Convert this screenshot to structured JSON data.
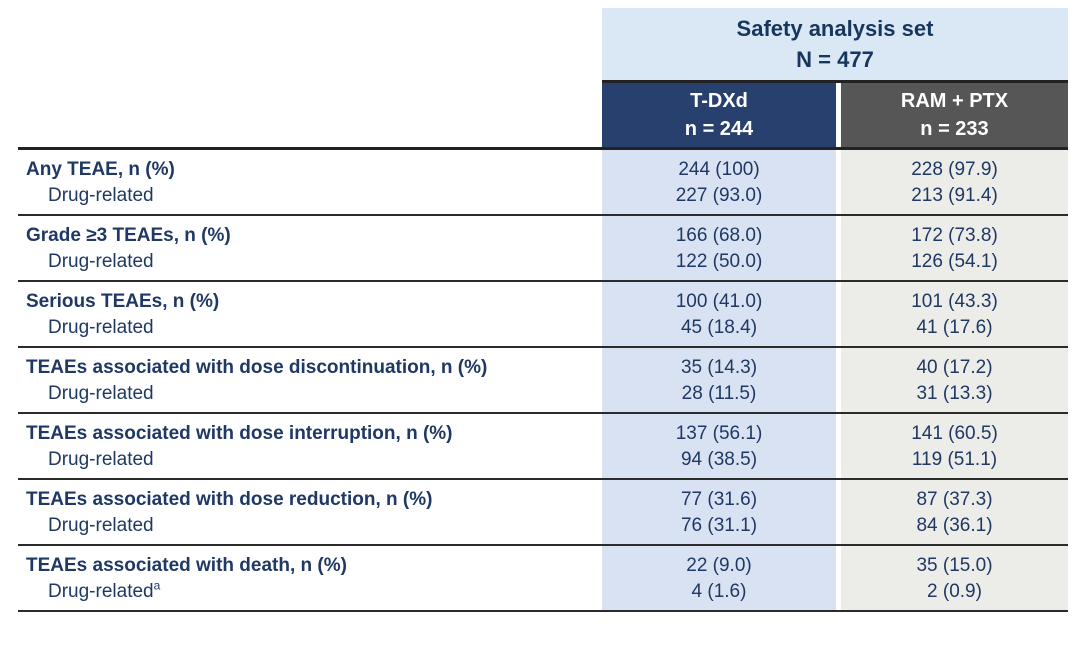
{
  "table": {
    "banner": {
      "title": "Safety analysis set",
      "n": "N = 477"
    },
    "columns": [
      {
        "name": "T-DXd",
        "n": "n = 244"
      },
      {
        "name": "RAM + PTX",
        "n": "n = 233"
      }
    ],
    "rows": [
      {
        "label": "Any TEAE, n (%)",
        "sub_label": "Drug-related",
        "sub_sup": "",
        "tdxd": [
          "244 (100)",
          "227 (93.0)"
        ],
        "ram": [
          "228 (97.9)",
          "213 (91.4)"
        ]
      },
      {
        "label": "Grade ≥3 TEAEs, n (%)",
        "sub_label": "Drug-related",
        "sub_sup": "",
        "tdxd": [
          "166 (68.0)",
          "122 (50.0)"
        ],
        "ram": [
          "172 (73.8)",
          "126 (54.1)"
        ]
      },
      {
        "label": "Serious TEAEs, n (%)",
        "sub_label": "Drug-related",
        "sub_sup": "",
        "tdxd": [
          "100 (41.0)",
          "45 (18.4)"
        ],
        "ram": [
          "101 (43.3)",
          "41 (17.6)"
        ]
      },
      {
        "label": "TEAEs associated with dose discontinuation, n (%)",
        "sub_label": "Drug-related",
        "sub_sup": "",
        "tdxd": [
          "35 (14.3)",
          "28 (11.5)"
        ],
        "ram": [
          "40 (17.2)",
          "31 (13.3)"
        ]
      },
      {
        "label": "TEAEs associated with dose interruption, n (%)",
        "sub_label": "Drug-related",
        "sub_sup": "",
        "tdxd": [
          "137 (56.1)",
          "94 (38.5)"
        ],
        "ram": [
          "141 (60.5)",
          "119 (51.1)"
        ]
      },
      {
        "label": "TEAEs associated with dose reduction, n (%)",
        "sub_label": "Drug-related",
        "sub_sup": "",
        "tdxd": [
          "77 (31.6)",
          "76 (31.1)"
        ],
        "ram": [
          "87 (37.3)",
          "84 (36.1)"
        ]
      },
      {
        "label": "TEAEs associated with death, n (%)",
        "sub_label": "Drug-related",
        "sub_sup": "a",
        "tdxd": [
          "22 (9.0)",
          "4 (1.6)"
        ],
        "ram": [
          "35 (15.0)",
          "2 (0.9)"
        ]
      }
    ]
  },
  "colors": {
    "banner_blue": "#dae7f5",
    "header_navy": "#27406e",
    "header_gray": "#565656",
    "column_blue": "#d9e2f2",
    "column_gray": "#ecece9",
    "text_navy": "#1f3864",
    "rule_dark": "#2b2b2b"
  },
  "chart_data": {
    "type": "table",
    "title": "Safety analysis set N = 477",
    "columns": [
      "T-DXd n = 244",
      "RAM + PTX n = 233"
    ],
    "row_labels": [
      "Any TEAE, n (%)",
      "Any TEAE: Drug-related",
      "Grade ≥3 TEAEs, n (%)",
      "Grade ≥3: Drug-related",
      "Serious TEAEs, n (%)",
      "Serious: Drug-related",
      "TEAEs associated with dose discontinuation, n (%)",
      "Dose discontinuation: Drug-related",
      "TEAEs associated with dose interruption, n (%)",
      "Dose interruption: Drug-related",
      "TEAEs associated with dose reduction, n (%)",
      "Dose reduction: Drug-related",
      "TEAEs associated with death, n (%)",
      "Death: Drug-related (a)"
    ],
    "values_tdxd": [
      "244 (100)",
      "227 (93.0)",
      "166 (68.0)",
      "122 (50.0)",
      "100 (41.0)",
      "45 (18.4)",
      "35 (14.3)",
      "28 (11.5)",
      "137 (56.1)",
      "94 (38.5)",
      "77 (31.6)",
      "76 (31.1)",
      "22 (9.0)",
      "4 (1.6)"
    ],
    "values_ram": [
      "228 (97.9)",
      "213 (91.4)",
      "172 (73.8)",
      "126 (54.1)",
      "101 (43.3)",
      "41 (17.6)",
      "40 (17.2)",
      "31 (13.3)",
      "141 (60.5)",
      "119 (51.1)",
      "87 (37.3)",
      "84 (36.1)",
      "35 (15.0)",
      "2 (0.9)"
    ]
  }
}
